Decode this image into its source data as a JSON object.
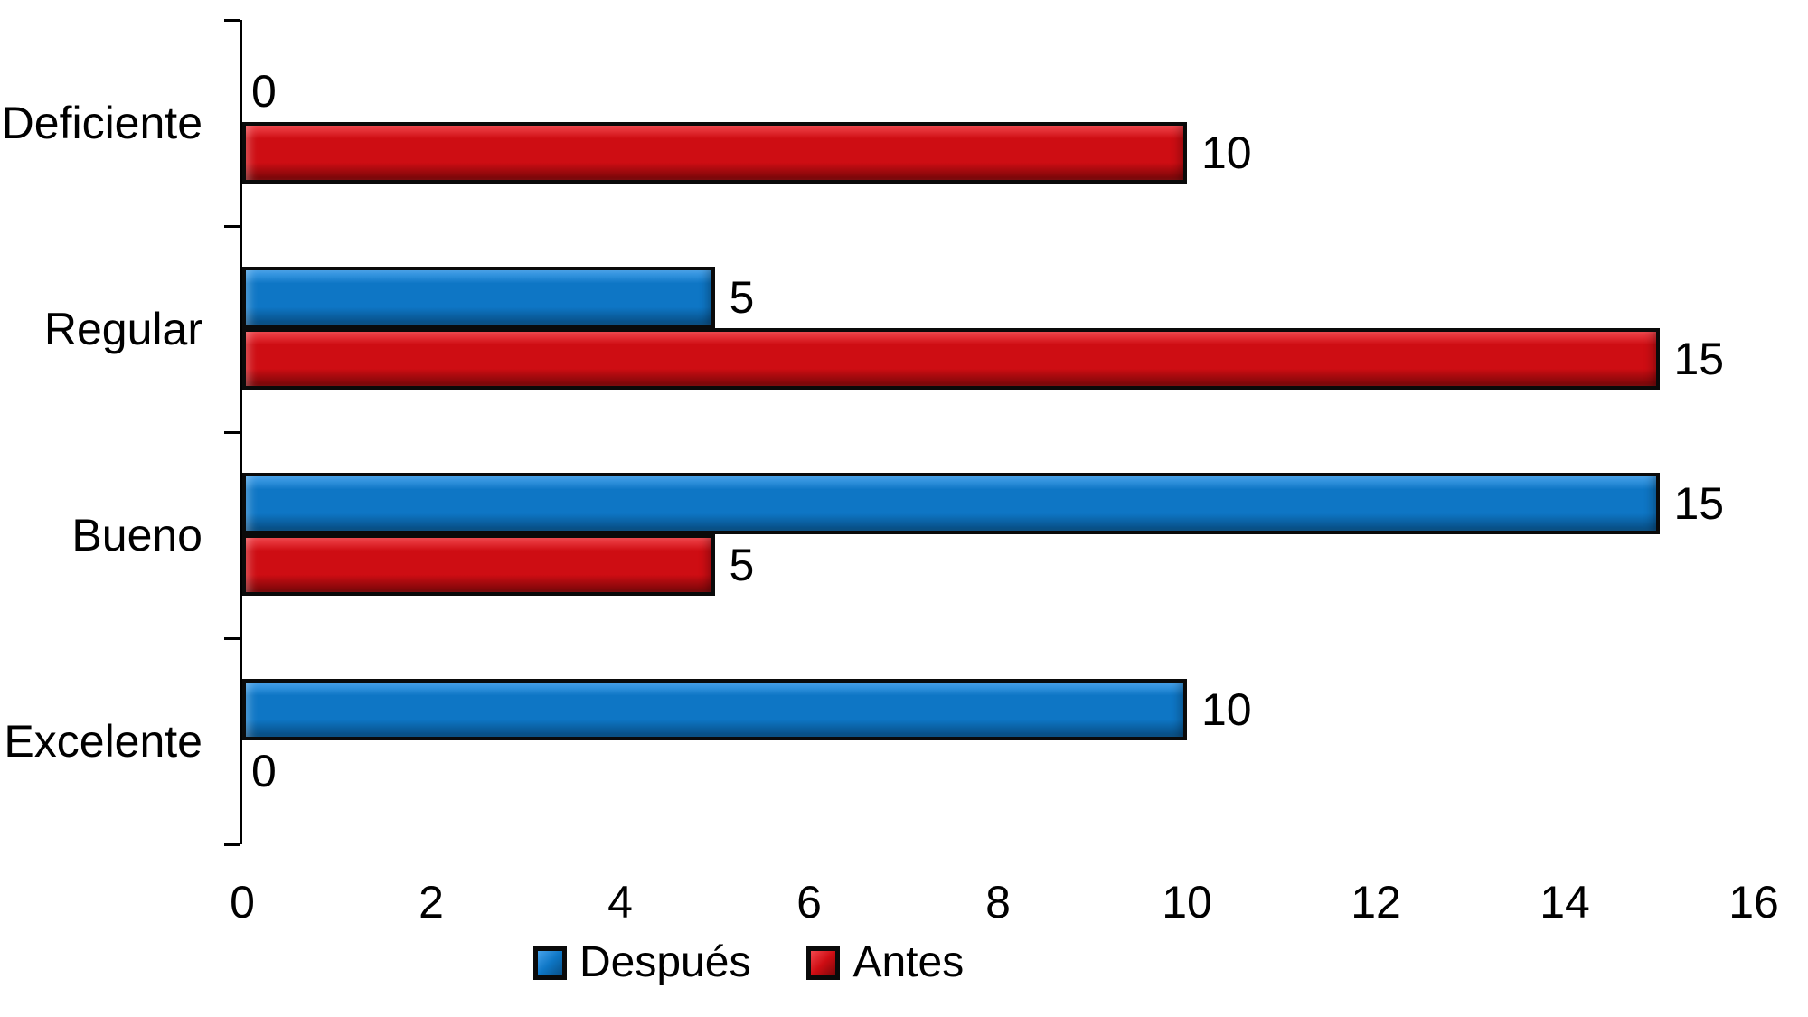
{
  "chart_data": {
    "type": "bar",
    "orientation": "horizontal",
    "title": "",
    "categories": [
      "Deficiente",
      "Regular",
      "Bueno",
      "Excelente"
    ],
    "series": [
      {
        "name": "Después",
        "values": [
          0,
          5,
          15,
          10
        ],
        "color": "#0e76c5",
        "highlight_color": "#47a3ec",
        "shadow_color": "#084f86"
      },
      {
        "name": "Antes",
        "values": [
          10,
          15,
          5,
          0
        ],
        "color": "#ce0d13",
        "highlight_color": "#f1464c",
        "shadow_color": "#7c0709"
      }
    ],
    "data_labels_shown": true,
    "xlim": [
      0,
      16
    ],
    "x_ticks": [
      0,
      2,
      4,
      6,
      8,
      10,
      12,
      14,
      16
    ],
    "grid": false,
    "legend_position": "bottom",
    "axis_color": "#000000",
    "text_color": "#000000",
    "background_color": "#ffffff",
    "bar_border_color": "#0a0a0a"
  }
}
